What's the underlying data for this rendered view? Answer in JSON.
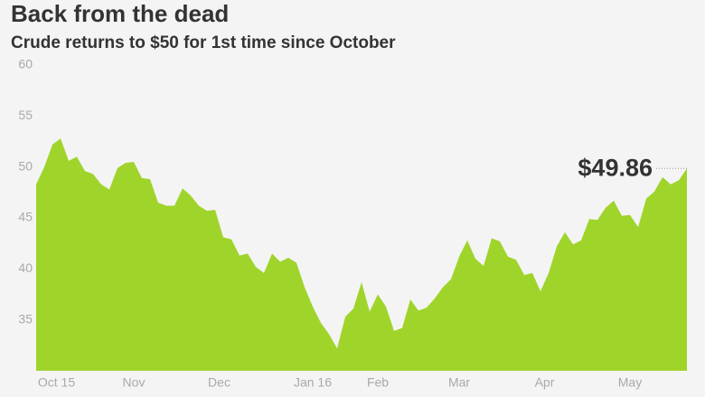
{
  "chart_data": {
    "type": "area",
    "title": "Back from the dead",
    "subtitle": "Crude returns to $50 for 1st time since October",
    "annotation": "$49.86",
    "color": "#9fd42b",
    "x": [
      0,
      1,
      2,
      3,
      4,
      5,
      6,
      7,
      8,
      9,
      10,
      11,
      12,
      13,
      14,
      15,
      16,
      17,
      18,
      19,
      20,
      21,
      22,
      23,
      24,
      25,
      26,
      27,
      28,
      29,
      30,
      31,
      32,
      33,
      34,
      35,
      36,
      37,
      38,
      39,
      40,
      41,
      42,
      43,
      44,
      45,
      46,
      47,
      48,
      49,
      50,
      51,
      52,
      53,
      54,
      55,
      56,
      57,
      58,
      59,
      60,
      61,
      62,
      63,
      64,
      65,
      66,
      67,
      68,
      69,
      70,
      71,
      72,
      73,
      74,
      75,
      76,
      77,
      78,
      79,
      80
    ],
    "values": [
      48.3,
      50,
      52.2,
      52.8,
      50.6,
      51,
      49.6,
      49.3,
      48.3,
      47.8,
      49.9,
      50.4,
      50.5,
      48.9,
      48.8,
      46.5,
      46.2,
      46.2,
      47.9,
      47.2,
      46.2,
      45.7,
      45.8,
      43.1,
      42.9,
      41.3,
      41.5,
      40.2,
      39.6,
      41.5,
      40.7,
      41.1,
      40.6,
      38.2,
      36.3,
      34.7,
      33.6,
      32.2,
      35.3,
      36.1,
      38.7,
      35.8,
      37.5,
      36.3,
      33.9,
      34.2,
      37,
      35.9,
      36.2,
      37.1,
      38.2,
      39,
      41.2,
      42.8,
      41,
      40.3,
      43,
      42.7,
      41.2,
      40.9,
      39.4,
      39.6,
      37.8,
      39.6,
      42.2,
      43.6,
      42.4,
      42.8,
      44.9,
      44.8,
      46,
      46.7,
      45.2,
      45.3,
      44.1,
      46.9,
      47.6,
      49,
      48.3,
      48.7,
      49.86
    ],
    "xlim": [
      0,
      80
    ],
    "xticks": [
      {
        "value": 2.5,
        "label": "Oct 15"
      },
      {
        "value": 12,
        "label": "Nov"
      },
      {
        "value": 22.5,
        "label": "Dec"
      },
      {
        "value": 34,
        "label": "Jan 16"
      },
      {
        "value": 42,
        "label": "Feb"
      },
      {
        "value": 52,
        "label": "Mar"
      },
      {
        "value": 62.5,
        "label": "Apr"
      },
      {
        "value": 73,
        "label": "May"
      }
    ],
    "ylim": [
      30,
      60
    ],
    "yticks": [
      35,
      40,
      45,
      50,
      55,
      60
    ],
    "grid": false
  }
}
